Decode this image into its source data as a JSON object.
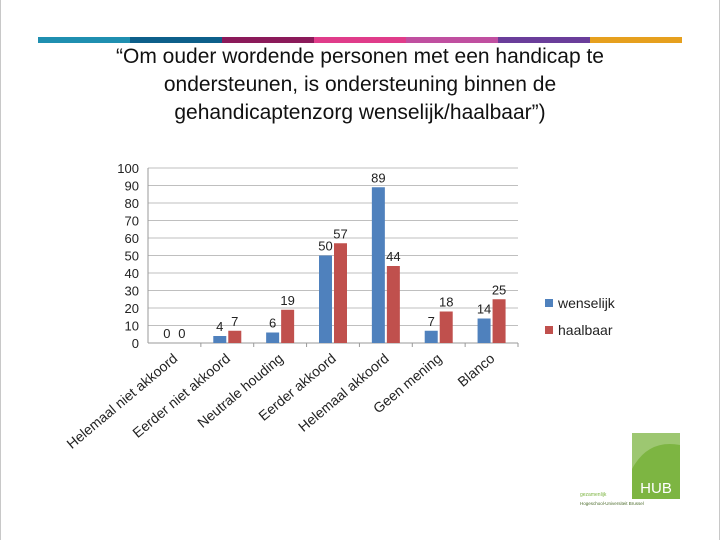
{
  "title_lines": [
    "“Om ouder wordende personen met een handicap te",
    "ondersteunen, is ondersteuning binnen de",
    "gehandicaptenzorg wenselijk/haalbaar”)"
  ],
  "stripe_colors": [
    "#1f8fb0",
    "#0d5f8a",
    "#8b1a5a",
    "#e03c8a",
    "#c04fa0",
    "#6a3d9a",
    "#e6a01e"
  ],
  "logo": {
    "text": "HUB",
    "small_line1": "gezamenlijk",
    "small_line2": "Hogeschool-Universiteit Brussel"
  },
  "chart_data": {
    "type": "bar",
    "categories": [
      "Helemaal niet akkoord",
      "Eerder niet akkoord",
      "Neutrale houding",
      "Eerder akkoord",
      "Helemaal akkoord",
      "Geen mening",
      "Blanco"
    ],
    "series": [
      {
        "name": "wenselijk",
        "values": [
          0,
          4,
          6,
          50,
          89,
          7,
          14
        ],
        "color": "#4f81bd"
      },
      {
        "name": "haalbaar",
        "values": [
          0,
          7,
          19,
          57,
          44,
          18,
          25
        ],
        "color": "#c0504d"
      }
    ],
    "ylim": [
      0,
      100
    ],
    "yticks": [
      0,
      10,
      20,
      30,
      40,
      50,
      60,
      70,
      80,
      90,
      100
    ],
    "grid": true,
    "legend": "right",
    "xlabel": "",
    "ylabel": ""
  }
}
